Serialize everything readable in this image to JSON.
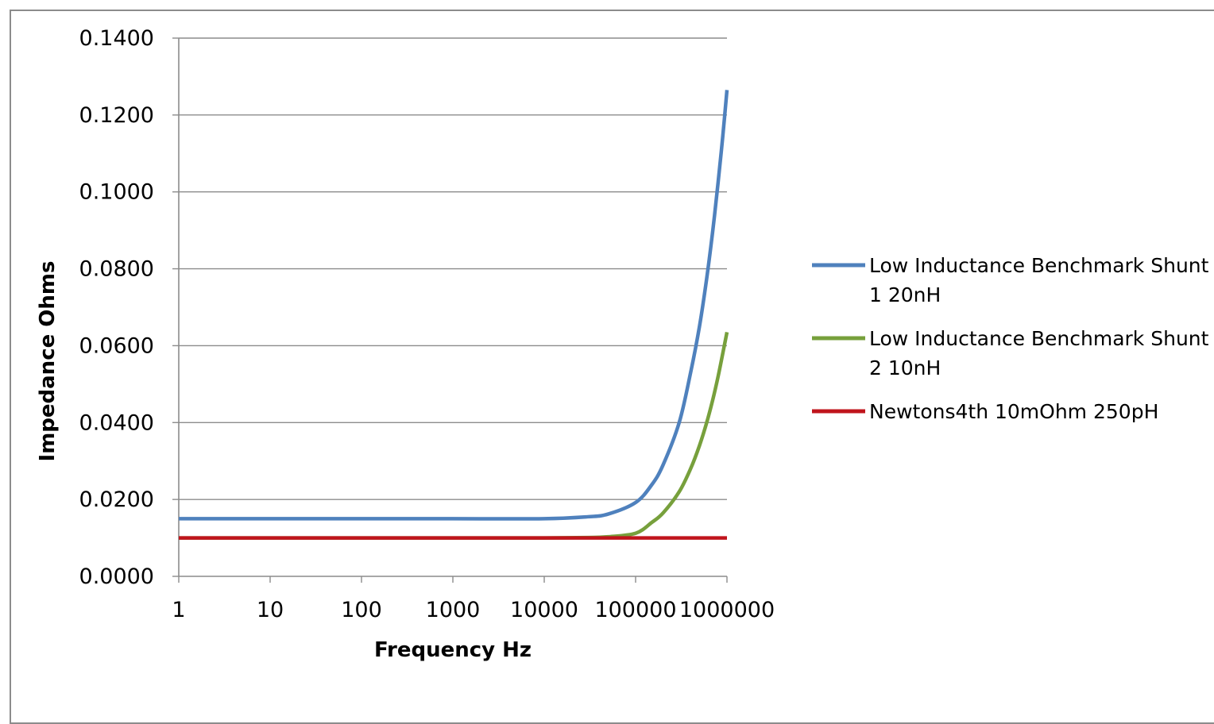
{
  "chart_data": {
    "type": "line",
    "title": "",
    "xlabel": "Frequency Hz",
    "ylabel": "Impedance Ohms",
    "x_scale": "log",
    "x": [
      1,
      10,
      100,
      1000,
      10000,
      30000,
      50000,
      100000,
      150000,
      200000,
      300000,
      400000,
      500000,
      600000,
      700000,
      800000,
      900000,
      1000000
    ],
    "x_tick_labels": [
      "1",
      "10",
      "100",
      "1000",
      "10000",
      "100000",
      "1000000"
    ],
    "x_ticks": [
      1,
      10,
      100,
      1000,
      10000,
      100000,
      1000000
    ],
    "y_tick_labels": [
      "0.0000",
      "0.0200",
      "0.0400",
      "0.0600",
      "0.0800",
      "0.1000",
      "0.1200",
      "0.1400"
    ],
    "y_ticks": [
      0,
      0.02,
      0.04,
      0.06,
      0.08,
      0.1,
      0.12,
      0.14
    ],
    "ylim": [
      0,
      0.14
    ],
    "grid": "horizontal",
    "legend_position": "right",
    "series": [
      {
        "name": "Low Inductance Benchmark Shunt 1 20nH",
        "legend_lines": [
          "Low Inductance Benchmark Shunt",
          "1 20nH"
        ],
        "color": "#4f81bd",
        "values": [
          0.015,
          0.015,
          0.015,
          0.015,
          0.015,
          0.0155,
          0.0162,
          0.0192,
          0.0238,
          0.029,
          0.04,
          0.053,
          0.065,
          0.0775,
          0.09,
          0.1025,
          0.1145,
          0.1265
        ]
      },
      {
        "name": "Low Inductance Benchmark Shunt 2 10nH",
        "legend_lines": [
          "Low Inductance Benchmark Shunt",
          "2 10nH"
        ],
        "color": "#77a03c",
        "values": [
          0.01,
          0.01,
          0.01,
          0.01,
          0.01,
          0.0101,
          0.0103,
          0.0112,
          0.014,
          0.0165,
          0.022,
          0.028,
          0.034,
          0.04,
          0.046,
          0.052,
          0.058,
          0.0635
        ]
      },
      {
        "name": "Newtons4th 10mOhm 250pH",
        "legend_lines": [
          "Newtons4th 10mOhm 250pH"
        ],
        "color": "#c0141c",
        "values": [
          0.01,
          0.01,
          0.01,
          0.01,
          0.01,
          0.01,
          0.01,
          0.01,
          0.01,
          0.01,
          0.01,
          0.01,
          0.01,
          0.01,
          0.01,
          0.01,
          0.01,
          0.01
        ]
      }
    ]
  }
}
